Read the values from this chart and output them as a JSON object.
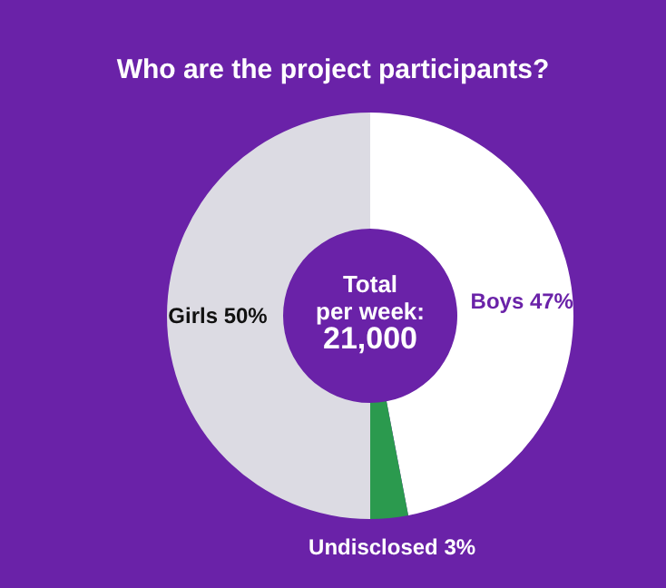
{
  "chart_data": {
    "type": "donut",
    "title": "Who are the project participants?",
    "categories": [
      "Boys",
      "Undisclosed",
      "Girls"
    ],
    "values": [
      47,
      3,
      50
    ],
    "value_labels": [
      "47%",
      "3%",
      "50%"
    ],
    "colors": [
      "#ffffff",
      "#2b9a4e",
      "#dcdbe3"
    ],
    "annotations": [
      "Total per week:",
      "21,000"
    ],
    "legend": false
  }
}
